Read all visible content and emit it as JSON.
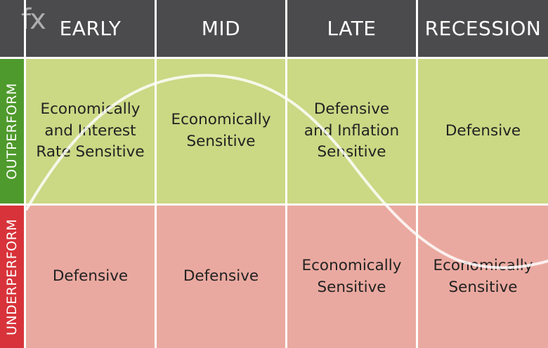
{
  "logo": {
    "mark": "fx"
  },
  "headers": [
    "EARLY",
    "MID",
    "LATE",
    "RECESSION"
  ],
  "rows": {
    "outperform": {
      "label": "OUTPERFORM",
      "cells": [
        "Economically\nand Interest\nRate Sensitive",
        "Economically\nSensitive",
        "Defensive\nand Inflation\nSensitive",
        "Defensive"
      ]
    },
    "underperform": {
      "label": "UNDERPERFORM",
      "cells": [
        "Defensive",
        "Defensive",
        "Economically\nSensitive",
        "Economically\nSensitive"
      ]
    }
  },
  "colors": {
    "header_bg": "#4b4b4d",
    "outperform_label_bg": "#4f9a2c",
    "underperform_label_bg": "#d8333a",
    "outperform_cell_bg": "#cbd884",
    "underperform_cell_bg": "#eaa9a0",
    "cycle_curve": "#ffffff"
  }
}
